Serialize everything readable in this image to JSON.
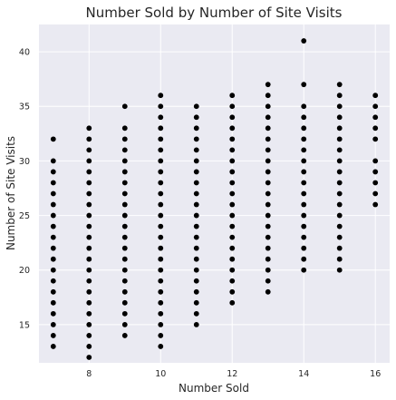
{
  "chart_data": {
    "type": "scatter",
    "title": "Number Sold by Number of Site Visits",
    "xlabel": "Number Sold",
    "ylabel": "Number of Site Visits",
    "xlim": [
      6.6,
      16.4
    ],
    "ylim": [
      11.5,
      42.5
    ],
    "xticks": [
      8,
      10,
      12,
      14,
      16
    ],
    "yticks": [
      15,
      20,
      25,
      30,
      35,
      40
    ],
    "grid": true,
    "marker_color": "#000000",
    "background_color": "#eaeaf2",
    "series": [
      {
        "points": [
          {
            "x": 7,
            "ys": [
              13,
              14,
              15,
              16,
              17,
              18,
              19,
              20,
              21,
              22,
              23,
              24,
              25,
              26,
              27,
              28,
              29,
              30,
              32
            ]
          },
          {
            "x": 8,
            "ys": [
              12,
              13,
              14,
              15,
              16,
              17,
              18,
              19,
              20,
              21,
              22,
              23,
              24,
              25,
              26,
              27,
              28,
              29,
              30,
              31,
              32,
              33
            ]
          },
          {
            "x": 9,
            "ys": [
              14,
              15,
              16,
              17,
              18,
              19,
              20,
              21,
              22,
              23,
              24,
              25,
              26,
              27,
              28,
              29,
              30,
              31,
              32,
              33,
              35
            ]
          },
          {
            "x": 10,
            "ys": [
              13,
              14,
              15,
              16,
              17,
              18,
              19,
              20,
              21,
              22,
              23,
              24,
              25,
              26,
              27,
              28,
              29,
              30,
              31,
              32,
              33,
              34,
              35,
              36
            ]
          },
          {
            "x": 11,
            "ys": [
              15,
              16,
              17,
              18,
              19,
              20,
              21,
              22,
              23,
              24,
              25,
              26,
              27,
              28,
              29,
              30,
              31,
              32,
              33,
              34,
              35
            ]
          },
          {
            "x": 12,
            "ys": [
              17,
              18,
              19,
              20,
              21,
              22,
              23,
              24,
              25,
              26,
              27,
              28,
              29,
              30,
              31,
              32,
              33,
              34,
              35,
              36
            ]
          },
          {
            "x": 13,
            "ys": [
              18,
              19,
              20,
              21,
              22,
              23,
              24,
              25,
              26,
              27,
              28,
              29,
              30,
              31,
              32,
              33,
              34,
              35,
              36,
              37
            ]
          },
          {
            "x": 14,
            "ys": [
              20,
              21,
              22,
              23,
              24,
              25,
              26,
              27,
              28,
              29,
              30,
              31,
              32,
              33,
              34,
              35,
              37,
              41
            ]
          },
          {
            "x": 15,
            "ys": [
              20,
              21,
              22,
              23,
              24,
              25,
              26,
              27,
              28,
              29,
              30,
              31,
              32,
              33,
              34,
              35,
              36,
              37
            ]
          },
          {
            "x": 16,
            "ys": [
              26,
              27,
              28,
              29,
              30,
              32,
              33,
              34,
              35,
              36
            ]
          }
        ]
      }
    ]
  }
}
